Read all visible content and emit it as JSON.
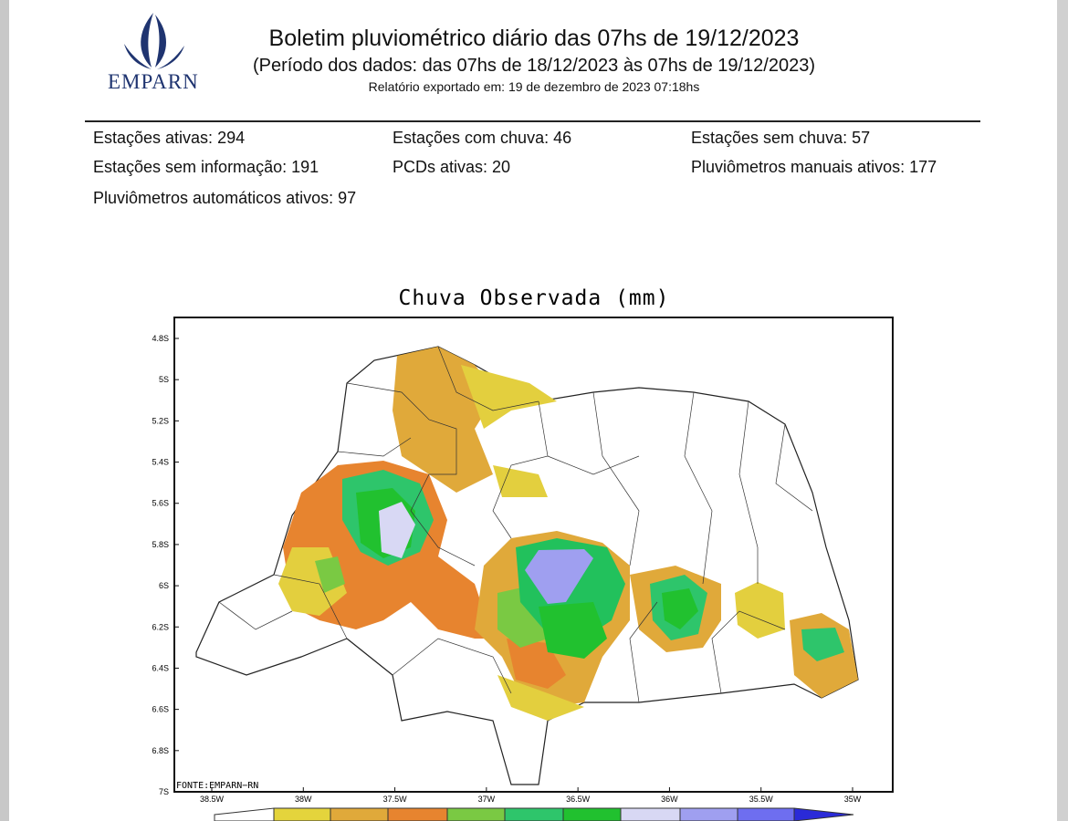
{
  "header": {
    "logo": "EMPARN",
    "title": "Boletim pluviométrico diário das 07hs de 19/12/2023",
    "subtitle": "(Período dos dados: das 07hs de 18/12/2023 às 07hs de 19/12/2023)",
    "exported": "Relatório exportado em: 19 de dezembro de 2023 07:18hs"
  },
  "stats": [
    {
      "label": "Estações ativas:",
      "value": 294
    },
    {
      "label": "Estações com chuva:",
      "value": 46
    },
    {
      "label": "Estações sem chuva:",
      "value": 57
    },
    {
      "label": "Estações sem informação:",
      "value": 191
    },
    {
      "label": "PCDs ativas:",
      "value": 20
    },
    {
      "label": "Pluviômetros manuais ativos:",
      "value": 177
    },
    {
      "label": "Pluviômetros automáticos ativos:",
      "value": 97
    }
  ],
  "map": {
    "title": "Chuva Observada (mm)",
    "lat_labels": [
      "4.8S",
      "5S",
      "5.2S",
      "5.4S",
      "5.6S",
      "5.8S",
      "6S",
      "6.2S",
      "6.4S",
      "6.6S",
      "6.8S",
      "7S"
    ],
    "lon_labels": [
      "38.5W",
      "38W",
      "37.5W",
      "37W",
      "36.5W",
      "36W",
      "35.5W",
      "35W"
    ],
    "source": "FONTE:EMPARN−RN"
  }
}
